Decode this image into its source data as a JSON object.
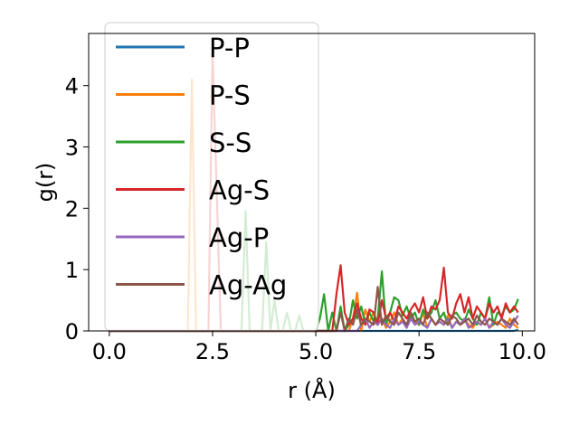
{
  "chart_data": {
    "type": "line",
    "title": "",
    "xlabel": "r (Å)",
    "ylabel": "g(r)",
    "xlim": [
      -0.5,
      10.3
    ],
    "ylim": [
      0,
      4.85
    ],
    "xticks": [
      0.0,
      2.5,
      5.0,
      7.5,
      10.0
    ],
    "xtick_labels": [
      "0.0",
      "2.5",
      "5.0",
      "7.5",
      "10.0"
    ],
    "yticks": [
      0,
      1,
      2,
      3,
      4
    ],
    "ytick_labels": [
      "0",
      "1",
      "2",
      "3",
      "4"
    ],
    "grid": false,
    "legend_position": "top-left",
    "x": [
      0.0,
      0.1,
      0.2,
      0.3,
      0.4,
      0.5,
      0.6,
      0.7,
      0.8,
      0.9,
      1.0,
      1.1,
      1.2,
      1.3,
      1.4,
      1.5,
      1.6,
      1.7,
      1.8,
      1.9,
      2.0,
      2.1,
      2.2,
      2.3,
      2.4,
      2.5,
      2.6,
      2.7,
      2.8,
      2.9,
      3.0,
      3.1,
      3.2,
      3.3,
      3.4,
      3.5,
      3.6,
      3.7,
      3.8,
      3.9,
      4.0,
      4.1,
      4.2,
      4.3,
      4.4,
      4.5,
      4.6,
      4.7,
      4.8,
      4.9,
      5.0,
      5.1,
      5.2,
      5.3,
      5.4,
      5.5,
      5.6,
      5.7,
      5.8,
      5.9,
      6.0,
      6.1,
      6.2,
      6.3,
      6.4,
      6.5,
      6.6,
      6.7,
      6.8,
      6.9,
      7.0,
      7.1,
      7.2,
      7.3,
      7.4,
      7.5,
      7.6,
      7.7,
      7.8,
      7.9,
      8.0,
      8.1,
      8.2,
      8.3,
      8.4,
      8.5,
      8.6,
      8.7,
      8.8,
      8.9,
      9.0,
      9.1,
      9.2,
      9.3,
      9.4,
      9.5,
      9.6,
      9.7,
      9.8,
      9.9
    ],
    "series": [
      {
        "name": "P-P",
        "color": "#1f77b4",
        "values": [
          0,
          0,
          0,
          0,
          0,
          0,
          0,
          0,
          0,
          0,
          0,
          0,
          0,
          0,
          0,
          0,
          0,
          0,
          0,
          0,
          0,
          0,
          0,
          0,
          0,
          0,
          0,
          0,
          0,
          0,
          0,
          0,
          0,
          0,
          0,
          0,
          0,
          0,
          0,
          0,
          0,
          0,
          0,
          0,
          0,
          0,
          0,
          0,
          0,
          0,
          0,
          0,
          0,
          0,
          0,
          0,
          0,
          0,
          0,
          0,
          0,
          0,
          0,
          0,
          0,
          0,
          0,
          0,
          0,
          0,
          0,
          0,
          0,
          0,
          0,
          0,
          0,
          0,
          0,
          0,
          0,
          0,
          0,
          0,
          0,
          0,
          0,
          0,
          0,
          0,
          0,
          0,
          0,
          0,
          0,
          0,
          0,
          0,
          0,
          0.02
        ]
      },
      {
        "name": "P-S",
        "color": "#ff7f0e",
        "values": [
          0,
          0,
          0,
          0,
          0,
          0,
          0,
          0,
          0,
          0,
          0,
          0,
          0,
          0,
          0,
          0,
          0,
          0,
          0,
          0,
          4.1,
          0,
          0,
          0,
          0,
          0,
          0,
          0,
          0,
          0,
          0,
          0,
          0,
          0,
          0,
          0,
          0,
          0,
          0,
          0,
          0,
          0,
          0,
          0,
          0,
          0,
          0,
          0,
          0,
          0,
          0,
          0,
          0,
          0,
          0,
          0,
          0,
          0,
          0,
          0.2,
          0.62,
          0,
          0.35,
          0.15,
          0.3,
          0.1,
          0.2,
          0.05,
          0.15,
          0.3,
          0.1,
          0.2,
          0.05,
          0.25,
          0.15,
          0.1,
          0.3,
          0.05,
          0.2,
          0.1,
          0.15,
          0.1,
          0.25,
          0.05,
          0.15,
          0.1,
          0.2,
          0.1,
          0.05,
          0.15,
          0.1,
          0.2,
          0.05,
          0.1,
          0.15,
          0.1,
          0.05,
          0.2,
          0.1,
          0.05
        ]
      },
      {
        "name": "S-S",
        "color": "#2ca02c",
        "values": [
          0,
          0,
          0,
          0,
          0,
          0,
          0,
          0,
          0,
          0,
          0,
          0,
          0,
          0,
          0,
          0,
          0,
          0,
          0,
          0,
          0,
          0,
          0,
          0,
          0,
          0,
          0,
          0,
          0,
          0,
          0,
          0,
          0,
          1.95,
          0,
          0,
          0,
          0,
          1.45,
          0,
          0.5,
          0,
          0,
          0.3,
          0,
          0,
          0.25,
          0,
          0,
          0,
          0,
          0.2,
          0.6,
          0,
          0.3,
          0,
          0.4,
          0,
          0.1,
          0.5,
          0.2,
          0.4,
          0.1,
          0.3,
          0.15,
          0.2,
          0.97,
          0.1,
          0.3,
          0.55,
          0.5,
          0.25,
          0.4,
          0.2,
          0.3,
          0.1,
          0.35,
          0.2,
          0.3,
          0.5,
          0.2,
          0.3,
          0.1,
          0.25,
          0.3,
          0.2,
          0.15,
          0.35,
          0.2,
          0.1,
          0.3,
          0.2,
          0.55,
          0.1,
          0.3,
          0.25,
          0.4,
          0.3,
          0.35,
          0.52
        ]
      },
      {
        "name": "Ag-S",
        "color": "#d62728",
        "values": [
          0,
          0,
          0,
          0,
          0,
          0,
          0,
          0,
          0,
          0,
          0,
          0,
          0,
          0,
          0,
          0,
          0,
          0,
          0,
          0,
          0,
          0,
          0,
          0,
          0,
          4.55,
          2.3,
          0,
          0,
          0,
          0,
          0,
          0,
          0,
          0,
          0,
          0,
          0,
          0,
          0,
          0,
          0,
          0,
          0,
          0,
          0,
          0,
          0,
          0,
          0,
          0,
          0,
          0,
          0,
          0,
          0.6,
          1.07,
          0.3,
          0.1,
          0.2,
          0.45,
          0.2,
          0.1,
          0.35,
          0.3,
          0.1,
          0.5,
          0.2,
          0.3,
          0.15,
          0.4,
          0.3,
          0.2,
          0.35,
          0.45,
          0.3,
          0.55,
          0.2,
          0.4,
          0.35,
          0.5,
          1.03,
          0.3,
          0.2,
          0.45,
          0.6,
          0.3,
          0.55,
          0.2,
          0.4,
          0.3,
          0.2,
          0.45,
          0.3,
          0.4,
          0.2,
          0.45,
          0.3,
          0.4,
          0.3
        ]
      },
      {
        "name": "Ag-P",
        "color": "#9467bd",
        "values": [
          0,
          0,
          0,
          0,
          0,
          0,
          0,
          0,
          0,
          0,
          0,
          0,
          0,
          0,
          0,
          0,
          0,
          0,
          0,
          0,
          0,
          0,
          0,
          0,
          0,
          0,
          0,
          0,
          0,
          0,
          0,
          0,
          0,
          0,
          0,
          0,
          0,
          0,
          0,
          0,
          0,
          0,
          0,
          0,
          0,
          0,
          0,
          0,
          0,
          0,
          0,
          0,
          0,
          0,
          0,
          0,
          0,
          0,
          0,
          0,
          0,
          0.1,
          0.2,
          0.05,
          0.15,
          0.1,
          0.2,
          0.1,
          0.05,
          0.2,
          0.1,
          0.15,
          0.05,
          0.2,
          0.1,
          0.15,
          0.1,
          0.05,
          0.2,
          0.1,
          0.15,
          0.1,
          0.2,
          0.05,
          0.15,
          0.1,
          0.2,
          0.05,
          0.1,
          0.15,
          0.1,
          0.2,
          0.05,
          0.15,
          0.1,
          0.2,
          0.1,
          0.05,
          0.15,
          0.25
        ]
      },
      {
        "name": "Ag-Ag",
        "color": "#8c564b",
        "values": [
          0,
          0,
          0,
          0,
          0,
          0,
          0,
          0,
          0,
          0,
          0,
          0,
          0,
          0,
          0,
          0,
          0,
          0,
          0,
          0,
          0,
          0,
          0,
          0,
          0,
          0,
          0,
          0,
          0,
          0,
          0,
          0,
          0,
          0,
          0,
          0,
          0,
          0,
          0,
          0,
          0,
          0,
          0,
          0,
          0,
          0,
          0,
          0,
          0,
          0,
          0,
          0,
          0,
          0,
          0,
          0,
          0.3,
          0,
          0.2,
          0.1,
          0.35,
          0.1,
          0.2,
          0.15,
          0.1,
          0.72,
          0.1,
          0.25,
          0.15,
          0.1,
          0.3,
          0.2,
          0.1,
          0.3,
          0.15,
          0.2,
          0.1,
          0.3,
          0.2,
          0.1,
          0.2,
          0.15,
          0.1,
          0.25,
          0.2,
          0.1,
          0.15,
          0.2,
          0.1,
          0.25,
          0.15,
          0.1,
          0.2,
          0.15,
          0.1,
          0.2,
          0.15,
          0.1,
          0.2,
          0.1
        ]
      }
    ]
  }
}
